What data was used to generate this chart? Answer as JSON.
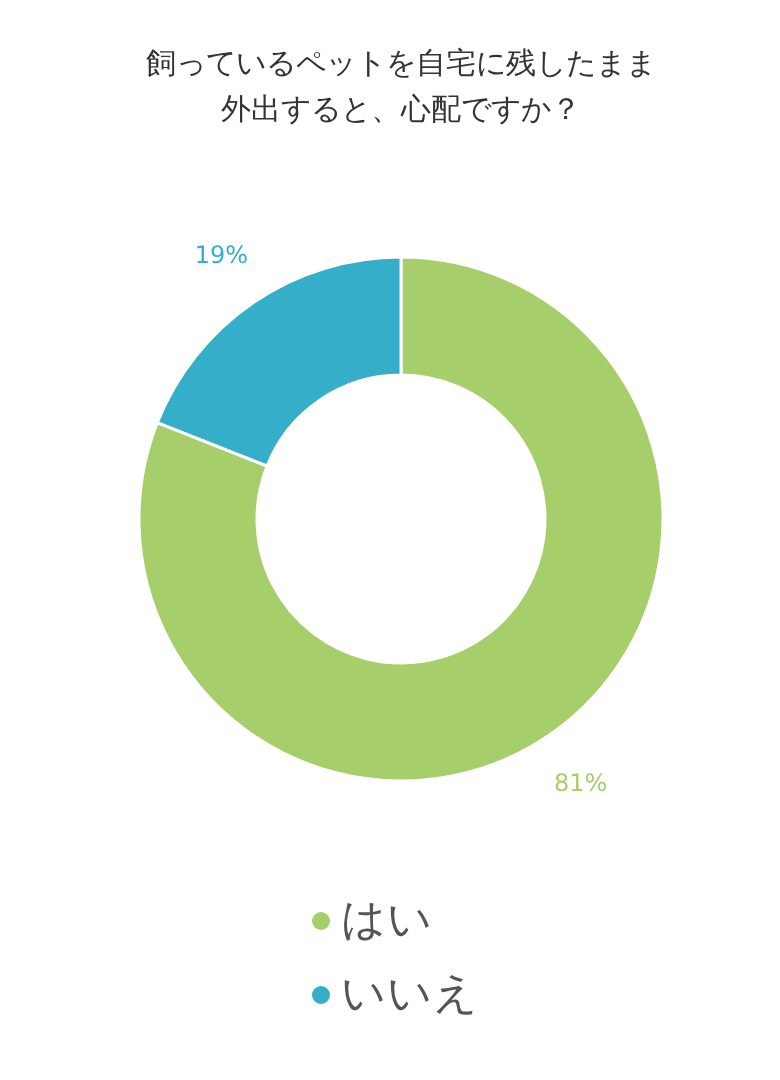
{
  "chart_data": {
    "type": "donut",
    "title": "飼っているペットを自宅に残したまま外出すると、心配ですか？",
    "categories": [
      "はい",
      "いいえ"
    ],
    "values": [
      81,
      19
    ],
    "colors": [
      "#a6ce6a",
      "#34aec9"
    ],
    "value_labels": [
      "81%",
      "19%"
    ],
    "legend": "bottom"
  }
}
